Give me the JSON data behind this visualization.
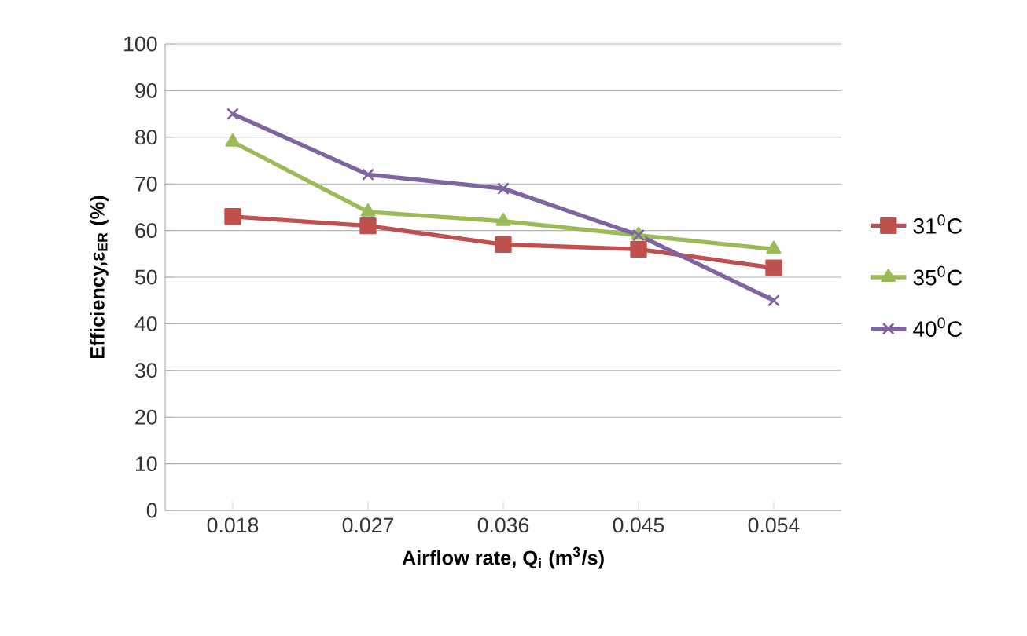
{
  "chart_data": {
    "type": "line",
    "xlabel": "Airflow rate, Q$_{i}$  (m$^{3}$/s)",
    "ylabel": "Efficiency,ε$_{ER}$ (%)",
    "categories": [
      "0.018",
      "0.027",
      "0.036",
      "0.045",
      "0.054"
    ],
    "series": [
      {
        "name": "31$^{0}$C",
        "color": "#c0504d",
        "marker": "square",
        "values": [
          63,
          61,
          57,
          56,
          52
        ]
      },
      {
        "name": "35$^{0}$C",
        "color": "#9bbb59",
        "marker": "triangle",
        "values": [
          79,
          64,
          62,
          59,
          56
        ]
      },
      {
        "name": "40$^{0}$C",
        "color": "#8064a2",
        "marker": "cross",
        "values": [
          85,
          72,
          69,
          59,
          45
        ]
      }
    ],
    "ylim": [
      0,
      100
    ],
    "yticks": [
      0,
      10,
      20,
      30,
      40,
      50,
      60,
      70,
      80,
      90,
      100
    ],
    "grid": "y",
    "legend": "right",
    "line_style": "solid"
  }
}
